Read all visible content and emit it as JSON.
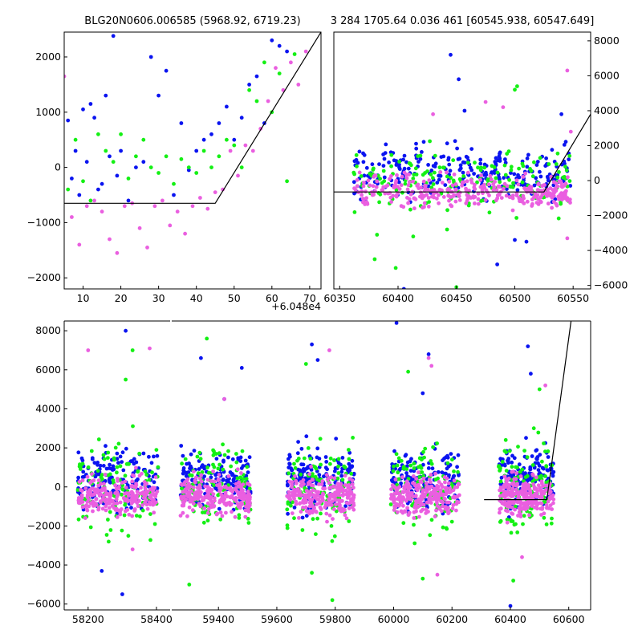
{
  "titles": {
    "left": "BLG20N0606.006585 (5968.92, 6719.23)",
    "right": "3 284 1705.64 0.036 461 [60545.938, 60547.649]"
  },
  "offset_label": "+6.048e4",
  "colors": {
    "blue": "#0a14f0",
    "green": "#14f014",
    "magenta": "#ea5fe0",
    "model": "#000000"
  },
  "chart_data": [
    {
      "id": "zoom-left",
      "type": "scatter",
      "title": "BLG20N0606.006585 (5968.92, 6719.23)",
      "xlim": [
        5,
        73
      ],
      "ylim": [
        -2200,
        2450
      ],
      "x_offset": 60480,
      "xticks": [
        10,
        20,
        30,
        40,
        50,
        60,
        70
      ],
      "xticklabels": [
        "10",
        "20",
        "30",
        "40",
        "50",
        "60",
        "70"
      ],
      "yticks": [
        -2000,
        -1000,
        0,
        1000,
        2000
      ],
      "yticklabels": [
        "−2000",
        "−1000",
        "0",
        "1000",
        "2000"
      ],
      "ytick_side": "left",
      "model": {
        "x": [
          5,
          45,
          73
        ],
        "y": [
          -650,
          -650,
          2450
        ]
      },
      "series": [
        {
          "color": "blue",
          "x": [
            6,
            7,
            8,
            9,
            10,
            11,
            12,
            13,
            14,
            15,
            16,
            17,
            18,
            19,
            20,
            22,
            24,
            26,
            28,
            30,
            32,
            34,
            36,
            38,
            40,
            42,
            44,
            46,
            48,
            50,
            52,
            54,
            56,
            58,
            60,
            62,
            64
          ],
          "y": [
            850,
            -200,
            300,
            -500,
            1050,
            100,
            1150,
            900,
            -400,
            -300,
            1300,
            200,
            2380,
            -150,
            300,
            -600,
            0,
            100,
            2000,
            1300,
            1750,
            -500,
            800,
            -50,
            300,
            500,
            600,
            800,
            1100,
            500,
            900,
            1500,
            1650,
            800,
            2300,
            2200,
            2100
          ]
        },
        {
          "color": "green",
          "x": [
            6,
            8,
            10,
            12,
            14,
            16,
            18,
            20,
            22,
            24,
            26,
            28,
            30,
            32,
            34,
            36,
            38,
            40,
            42,
            44,
            46,
            48,
            50,
            52,
            54,
            56,
            58,
            60,
            62,
            64,
            66
          ],
          "y": [
            -400,
            500,
            -250,
            -600,
            600,
            300,
            100,
            600,
            -200,
            200,
            500,
            0,
            -100,
            200,
            -300,
            150,
            0,
            -100,
            300,
            0,
            200,
            500,
            400,
            0,
            1400,
            1200,
            1900,
            1000,
            1700,
            -250,
            2050
          ]
        },
        {
          "color": "magenta",
          "x": [
            5,
            7,
            9,
            11,
            13,
            15,
            17,
            19,
            21,
            23,
            25,
            27,
            29,
            31,
            33,
            35,
            37,
            39,
            41,
            43,
            45,
            47,
            49,
            51,
            53,
            55,
            57,
            59,
            61,
            63,
            65,
            67,
            69
          ],
          "y": [
            1650,
            -900,
            -1400,
            -700,
            -600,
            -800,
            -1300,
            -1550,
            -700,
            -650,
            -1100,
            -1450,
            -700,
            -600,
            -1050,
            -800,
            -1200,
            -700,
            -550,
            -750,
            -450,
            -400,
            300,
            -150,
            400,
            300,
            700,
            1200,
            1800,
            1400,
            1900,
            1500,
            2100
          ]
        }
      ]
    },
    {
      "id": "zoom-right",
      "type": "scatter",
      "title": "3 284 1705.64 0.036 461 [60545.938, 60547.649]",
      "xlim": [
        60345,
        60565
      ],
      "ylim": [
        -6200,
        8500
      ],
      "xticks": [
        60350,
        60400,
        60450,
        60500,
        60550
      ],
      "xticklabels": [
        "60350",
        "60400",
        "60450",
        "60500",
        "60550"
      ],
      "yticks": [
        -6000,
        -4000,
        -2000,
        0,
        2000,
        4000,
        6000,
        8000
      ],
      "yticklabels": [
        "−6000",
        "−4000",
        "−2000",
        "0",
        "2000",
        "4000",
        "6000",
        "8000"
      ],
      "ytick_side": "right",
      "model": {
        "x": [
          60345,
          60525,
          60565
        ],
        "y": [
          -650,
          -650,
          3800
        ]
      },
      "clusters": [
        {
          "color": "blue",
          "x_range": [
            60362,
            60548
          ],
          "y_center": 500,
          "y_spread": 750,
          "count": 260
        },
        {
          "color": "green",
          "x_range": [
            60362,
            60548
          ],
          "y_center": 0,
          "y_spread": 850,
          "count": 170
        },
        {
          "color": "magenta",
          "x_range": [
            60362,
            60548
          ],
          "y_center": -650,
          "y_spread": 450,
          "count": 320
        }
      ],
      "outliers": [
        {
          "color": "blue",
          "x": [
            60445,
            60452,
            60457,
            60405,
            60485,
            60500,
            60510,
            60540
          ],
          "y": [
            7200,
            5800,
            4000,
            -6200,
            -4800,
            -3400,
            -3500,
            3800
          ]
        },
        {
          "color": "green",
          "x": [
            60380,
            60382,
            60398,
            60413,
            60442,
            60500,
            60502,
            60450
          ],
          "y": [
            -4500,
            -3100,
            -5000,
            -3200,
            -2800,
            5200,
            5400,
            -6100
          ]
        },
        {
          "color": "magenta",
          "x": [
            60545,
            60475,
            60490,
            60430,
            60545,
            60548
          ],
          "y": [
            6300,
            4500,
            4200,
            3800,
            -3300,
            2800
          ]
        }
      ]
    },
    {
      "id": "full-lightcurve",
      "type": "scatter",
      "xlim": [
        58130,
        60675
      ],
      "ylim": [
        -6300,
        8500
      ],
      "x_break": [
        58440,
        59240
      ],
      "xticks": [
        58200,
        58400,
        59400,
        59600,
        59800,
        60000,
        60200,
        60400,
        60600
      ],
      "xticklabels": [
        "58200",
        "58400",
        "59400",
        "59600",
        "59800",
        "60000",
        "60200",
        "60400",
        "60600"
      ],
      "yticks": [
        -6000,
        -4000,
        -2000,
        0,
        2000,
        4000,
        6000,
        8000
      ],
      "yticklabels": [
        "−6000",
        "−4000",
        "−2000",
        "0",
        "2000",
        "4000",
        "6000",
        "8000"
      ],
      "ytick_side": "left",
      "model": {
        "x": [
          60310,
          60525,
          60608
        ],
        "y": [
          -650,
          -650,
          8500
        ]
      },
      "seasons": [
        {
          "x_range": [
            58170,
            58405
          ]
        },
        {
          "x_range": [
            59270,
            59510
          ]
        },
        {
          "x_range": [
            59635,
            59865
          ]
        },
        {
          "x_range": [
            59990,
            60225
          ]
        },
        {
          "x_range": [
            60360,
            60548
          ]
        }
      ],
      "clusters": [
        {
          "color": "blue",
          "y_center": 400,
          "y_spread": 750,
          "count": 170
        },
        {
          "color": "green",
          "y_center": 0,
          "y_spread": 1100,
          "count": 110
        },
        {
          "color": "magenta",
          "y_center": -450,
          "y_spread": 500,
          "count": 230
        }
      ],
      "outliers": [
        {
          "color": "blue",
          "x": [
            58310,
            58300,
            58240,
            59340,
            59420,
            59480,
            59720,
            59740,
            60010,
            60100,
            60120,
            60460,
            60470,
            60400
          ],
          "y": [
            8000,
            -5500,
            -4300,
            6600,
            4500,
            6100,
            7300,
            6500,
            8400,
            4800,
            6800,
            7200,
            5800,
            -6100
          ]
        },
        {
          "color": "green",
          "x": [
            58330,
            58310,
            58260,
            59360,
            59300,
            59700,
            59720,
            59790,
            60050,
            60100,
            60410,
            60500
          ],
          "y": [
            7000,
            5500,
            -2800,
            7600,
            -5000,
            6300,
            -4400,
            -5800,
            5900,
            -4700,
            -4800,
            5000
          ]
        },
        {
          "color": "magenta",
          "x": [
            58200,
            58380,
            58330,
            59420,
            59780,
            60120,
            60130,
            60150,
            60440,
            60520
          ],
          "y": [
            7000,
            7100,
            -3200,
            4500,
            7000,
            6600,
            6200,
            -4500,
            -3600,
            5200
          ]
        }
      ]
    }
  ]
}
